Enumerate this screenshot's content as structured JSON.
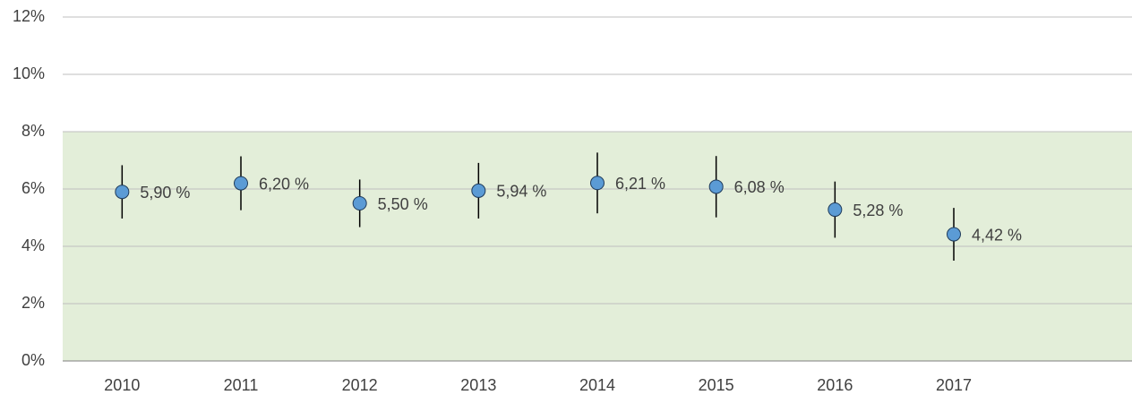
{
  "chart_data": {
    "type": "errorbar",
    "categories": [
      "2010",
      "2011",
      "2012",
      "2013",
      "2014",
      "2015",
      "2016",
      "2017",
      null
    ],
    "values": [
      5.9,
      6.2,
      5.5,
      5.94,
      6.21,
      6.08,
      5.28,
      4.42,
      null
    ],
    "value_labels": [
      "5,90 %",
      "6,20 %",
      "5,50 %",
      "5,94 %",
      "6,21 %",
      "6,08 %",
      "5,28 %",
      "4,42 %",
      null
    ],
    "errors": [
      0.93,
      0.94,
      0.83,
      0.97,
      1.06,
      1.07,
      0.98,
      0.92,
      null
    ],
    "color": "#5b9bd5",
    "ylim": [
      0,
      12
    ],
    "yticks": [
      {
        "value": 0,
        "label": "0%"
      },
      {
        "value": 2,
        "label": "2%"
      },
      {
        "value": 4,
        "label": "4%"
      },
      {
        "value": 6,
        "label": "6%"
      },
      {
        "value": 8,
        "label": "8%"
      },
      {
        "value": 10,
        "label": "10%"
      },
      {
        "value": 12,
        "label": "12%"
      }
    ],
    "shaded_range": [
      0,
      8
    ],
    "shaded_color": "#e3eed9",
    "grid": true
  }
}
